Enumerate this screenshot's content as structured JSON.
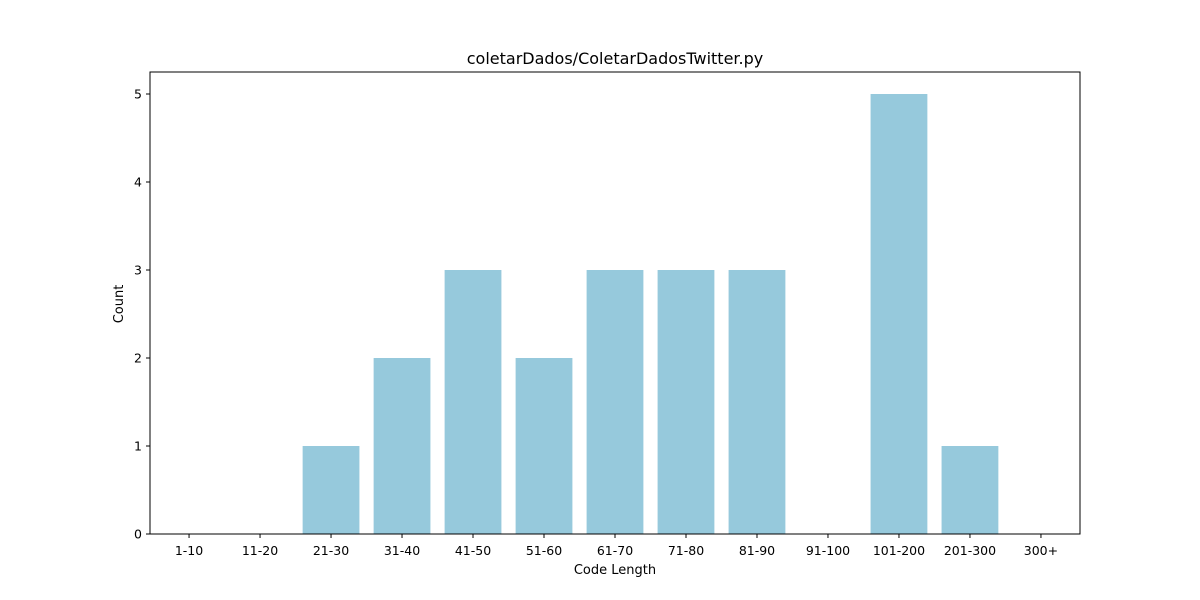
{
  "chart_data": {
    "type": "bar",
    "title": "coletarDados/ColetarDadosTwitter.py",
    "xlabel": "Code Length",
    "ylabel": "Count",
    "categories": [
      "1-10",
      "11-20",
      "21-30",
      "31-40",
      "41-50",
      "51-60",
      "61-70",
      "71-80",
      "81-90",
      "91-100",
      "101-200",
      "201-300",
      "300+"
    ],
    "values": [
      0,
      0,
      1,
      2,
      3,
      2,
      3,
      3,
      3,
      0,
      5,
      1,
      0
    ],
    "ylim": [
      0,
      5.25
    ],
    "yticks": [
      0,
      1,
      2,
      3,
      4,
      5
    ],
    "bar_color": "#96c9dc",
    "grid": false,
    "legend": "none"
  }
}
